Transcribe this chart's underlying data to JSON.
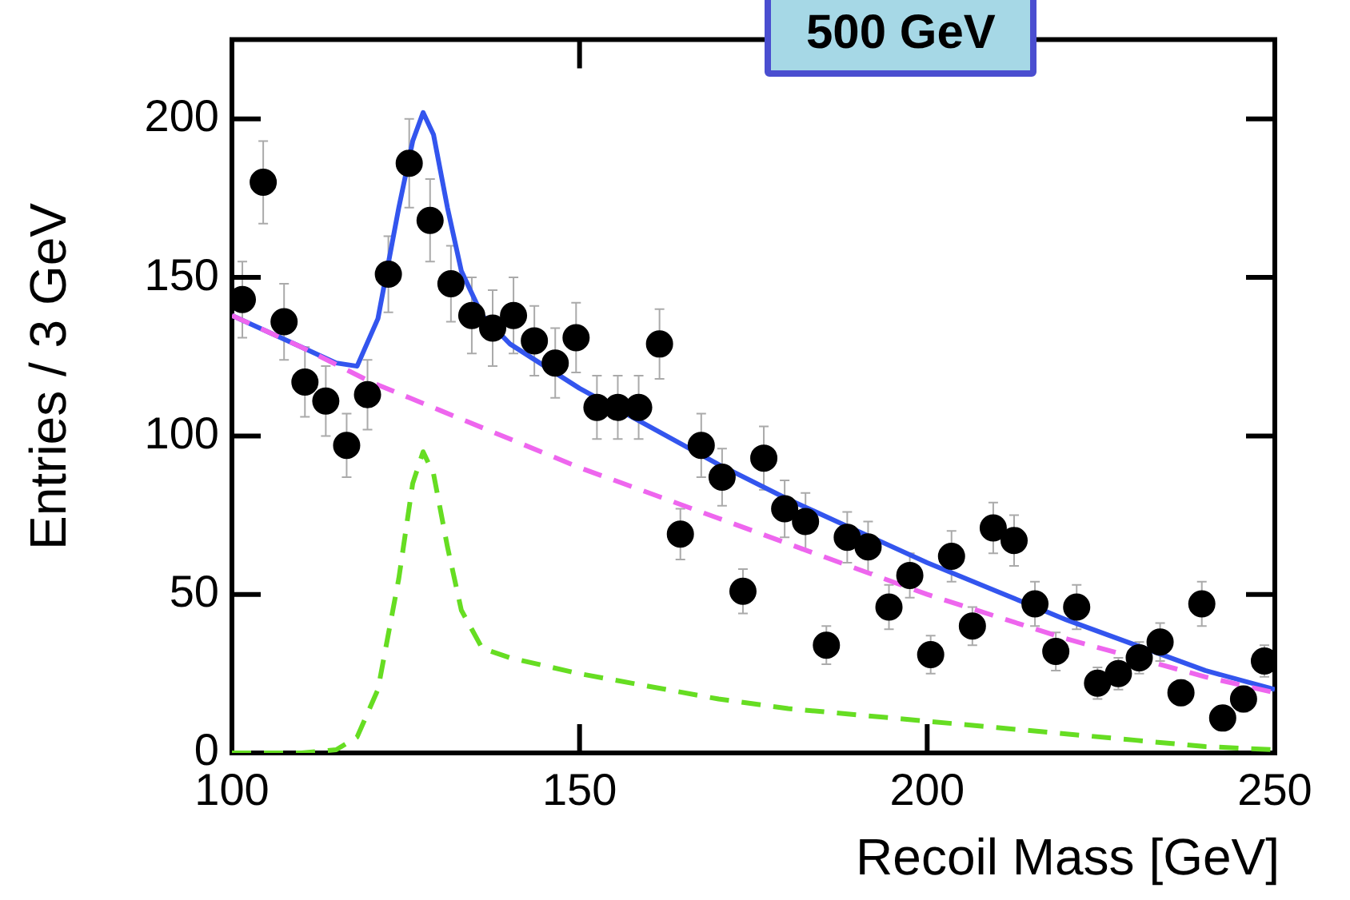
{
  "chart_data": {
    "type": "scatter",
    "xlabel": "Recoil Mass [GeV]",
    "ylabel": "Entries / 3 GeV",
    "annotations": [
      "500 GeV"
    ],
    "xlim": [
      100,
      250
    ],
    "xticks": [
      100,
      150,
      200,
      250
    ],
    "ylim": [
      0,
      225
    ],
    "yticks": [
      0,
      50,
      100,
      150,
      200
    ],
    "grid": false,
    "legend": false,
    "x": [
      101.5,
      104.5,
      107.5,
      110.5,
      113.5,
      116.5,
      119.5,
      122.5,
      125.5,
      128.5,
      131.5,
      134.5,
      137.5,
      140.5,
      143.5,
      146.5,
      149.5,
      152.5,
      155.5,
      158.5,
      161.5,
      164.5,
      167.5,
      170.5,
      173.5,
      176.5,
      179.5,
      182.5,
      185.5,
      188.5,
      191.5,
      194.5,
      197.5,
      200.5,
      203.5,
      206.5,
      209.5,
      212.5,
      215.5,
      218.5,
      221.5,
      224.5,
      227.5,
      230.5,
      233.5,
      236.5,
      239.5,
      242.5,
      245.5,
      248.5
    ],
    "series": [
      {
        "type": "scatter",
        "color": "#000000",
        "marker": "circle",
        "values": [
          143,
          180,
          136,
          117,
          111,
          97,
          113,
          151,
          186,
          168,
          148,
          138,
          134,
          138,
          130,
          123,
          131,
          109,
          109,
          109,
          129,
          69,
          97,
          87,
          51,
          93,
          77,
          73,
          34,
          68,
          65,
          46,
          56,
          31,
          62,
          40,
          71,
          67,
          47,
          32,
          46,
          22,
          25,
          30,
          35,
          19,
          47,
          11,
          17,
          29
        ],
        "errors": [
          12,
          13,
          12,
          11,
          11,
          10,
          11,
          12,
          14,
          13,
          12,
          12,
          12,
          12,
          11,
          11,
          11,
          10,
          10,
          10,
          11,
          8,
          10,
          9,
          7,
          10,
          9,
          9,
          6,
          8,
          8,
          7,
          7,
          6,
          8,
          6,
          8,
          8,
          7,
          6,
          7,
          5,
          5,
          5,
          6,
          4,
          7,
          3,
          4,
          5
        ]
      },
      {
        "type": "line",
        "color": "#ee66ee",
        "line_style": "dashed",
        "marker": "none",
        "x": [
          100,
          110,
          120,
          130,
          140,
          150,
          160,
          170,
          180,
          190,
          200,
          210,
          220,
          230,
          240,
          250
        ],
        "values": [
          138,
          128,
          117,
          108,
          99,
          90,
          82,
          74,
          66,
          58,
          50,
          43,
          36,
          30,
          24,
          19
        ]
      },
      {
        "type": "line",
        "color": "#66dd22",
        "line_style": "dashed",
        "marker": "none",
        "x": [
          100,
          110,
          115,
          118,
          121,
          124,
          126,
          127.5,
          129,
          131,
          133,
          136,
          140,
          150,
          160,
          170,
          180,
          190,
          200,
          210,
          220,
          230,
          240,
          250
        ],
        "values": [
          0,
          0,
          1,
          5,
          20,
          55,
          85,
          95,
          88,
          65,
          45,
          33,
          30,
          25,
          21,
          17,
          14,
          12,
          10,
          8,
          6,
          4,
          2,
          1
        ]
      },
      {
        "type": "line",
        "color": "#3355ee",
        "line_style": "solid",
        "marker": "none",
        "x": [
          100,
          110,
          115,
          118,
          121,
          124,
          126,
          127.5,
          129,
          131,
          133,
          136,
          140,
          150,
          160,
          170,
          180,
          190,
          200,
          210,
          220,
          230,
          240,
          250
        ],
        "values": [
          138,
          128,
          123,
          122,
          137,
          172,
          193,
          202,
          195,
          172,
          152,
          138,
          129,
          115,
          103,
          91,
          80,
          70,
          60,
          51,
          42,
          34,
          26,
          20
        ]
      }
    ]
  }
}
